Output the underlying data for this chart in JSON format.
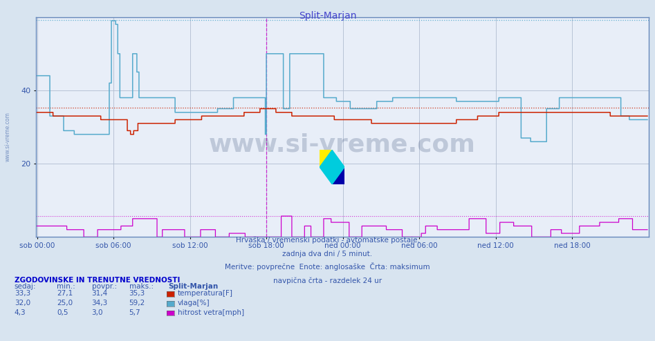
{
  "title": "Split-Marjan",
  "title_color": "#4444cc",
  "bg_color": "#d8e4f0",
  "plot_bg_color": "#e8eef8",
  "grid_color": "#b0bcd0",
  "label_color": "#3355aa",
  "n_points": 576,
  "ylim": [
    0,
    60
  ],
  "ytick_vals": [
    20,
    40
  ],
  "xtick_labels": [
    "sob 00:00",
    "sob 06:00",
    "sob 12:00",
    "sob 18:00",
    "ned 00:00",
    "ned 06:00",
    "ned 12:00",
    "ned 18:00"
  ],
  "temp_color": "#cc2200",
  "humidity_color": "#55aacc",
  "wind_color": "#cc00cc",
  "temp_max_line": 35.3,
  "humidity_max_line": 59.2,
  "wind_max_line": 5.7,
  "footer1": "Hrvaška / vremenski podatki - avtomatske postaje.",
  "footer2": "zadnja dva dni / 5 minut.",
  "footer3": "Meritve: povprečne  Enote: anglosaške  Črta: maksimum",
  "footer4": "navpična črta - razdelek 24 ur",
  "table_header": "ZGODOVINSKE IN TRENUTNE VREDNOSTI",
  "col_sedaj": "sedaj:",
  "col_min": "min.:",
  "col_povpr": "povpr.:",
  "col_maks": "maks.:",
  "station": "Split-Marjan",
  "temp_cur": "33,3",
  "temp_min": "27,1",
  "temp_avg": "31,4",
  "temp_max": "35,3",
  "hum_cur": "32,0",
  "hum_min": "25,0",
  "hum_avg": "34,3",
  "hum_max": "59,2",
  "wind_cur": "4,3",
  "wind_min": "0,5",
  "wind_avg": "3,0",
  "wind_max": "5,7",
  "temp_label": "temperatura[F]",
  "hum_label": "vlaga[%]",
  "wind_label": "hitrost vetra[mph]",
  "watermark": "www.si-vreme.com",
  "watermark_color": "#1a3060",
  "watermark_alpha": 0.2,
  "side_label": "www.si-vreme.com",
  "axis_border_color": "#6688bb"
}
